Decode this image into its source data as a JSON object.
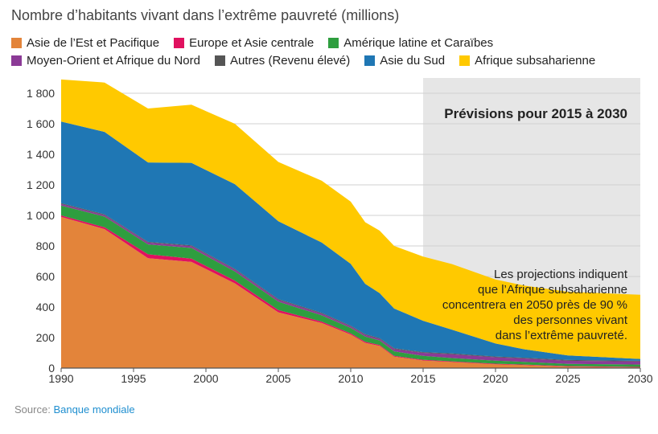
{
  "title": "Nombre d’habitants vivant dans l’extrême pauvreté (millions)",
  "source": {
    "label": "Source:",
    "link_text": "Banque mondiale"
  },
  "chart_data": {
    "type": "area",
    "stacked": true,
    "title": "Nombre d’habitants vivant dans l’extrême pauvreté (millions)",
    "x": [
      1990,
      1993,
      1996,
      1999,
      2002,
      2005,
      2008,
      2010,
      2011,
      2012,
      2013,
      2015,
      2017,
      2020,
      2022,
      2025,
      2030
    ],
    "xlim": [
      1990,
      2030
    ],
    "ylim": [
      0,
      1900
    ],
    "x_ticks": [
      1990,
      1995,
      2000,
      2005,
      2010,
      2015,
      2020,
      2025,
      2030
    ],
    "x_tick_labels": [
      "1990",
      "1995",
      "2000",
      "2005",
      "2010",
      "2015",
      "2020",
      "2025",
      "2030"
    ],
    "y_ticks": [
      0,
      200,
      400,
      600,
      800,
      1000,
      1200,
      1400,
      1600,
      1800
    ],
    "y_tick_labels": [
      "0",
      "200",
      "400",
      "600",
      "800",
      "1 000",
      "1 200",
      "1 400",
      "1 600",
      "1 800"
    ],
    "grid": true,
    "legend_position": "top",
    "series": [
      {
        "name": "Asie de l’Est et Pacifique",
        "color": "#e3843a",
        "values": [
          990,
          910,
          720,
          695,
          555,
          365,
          295,
          220,
          165,
          145,
          75,
          50,
          40,
          25,
          20,
          10,
          5
        ]
      },
      {
        "name": "Europe et Asie centrale",
        "color": "#e0115f",
        "values": [
          10,
          12,
          25,
          22,
          18,
          15,
          10,
          8,
          7,
          6,
          5,
          5,
          4,
          4,
          3,
          3,
          3
        ]
      },
      {
        "name": "Amérique latine et Caraïbes",
        "color": "#2e9e3f",
        "values": [
          65,
          70,
          65,
          70,
          60,
          55,
          40,
          35,
          35,
          30,
          30,
          25,
          22,
          20,
          18,
          15,
          15
        ]
      },
      {
        "name": "Moyen-Orient et Afrique du Nord",
        "color": "#8b3a96",
        "values": [
          10,
          10,
          12,
          12,
          12,
          12,
          12,
          10,
          10,
          10,
          15,
          20,
          25,
          22,
          22,
          20,
          20
        ]
      },
      {
        "name": "Autres (Revenu élevé)",
        "color": "#555555",
        "values": [
          5,
          5,
          5,
          5,
          5,
          5,
          5,
          5,
          5,
          5,
          5,
          5,
          5,
          5,
          5,
          5,
          5
        ]
      },
      {
        "name": "Asie du Sud",
        "color": "#1f77b4",
        "values": [
          535,
          540,
          520,
          540,
          555,
          510,
          460,
          405,
          330,
          295,
          260,
          205,
          155,
          85,
          55,
          30,
          12
        ]
      },
      {
        "name": "Afrique subsaharienne",
        "color": "#ffc900",
        "values": [
          275,
          323,
          353,
          381,
          395,
          388,
          405,
          407,
          403,
          409,
          410,
          420,
          430,
          419,
          417,
          417,
          420
        ]
      }
    ],
    "projection": {
      "from": 2015,
      "to": 2030,
      "label": "Prévisions pour 2015 à 2030",
      "annotation": [
        "Les projections indiquent",
        "que l’Afrique subsaharienne",
        "concentrera en 2050 près de 90 %",
        "des personnes vivant",
        "dans l’extrême pauvreté."
      ]
    }
  }
}
